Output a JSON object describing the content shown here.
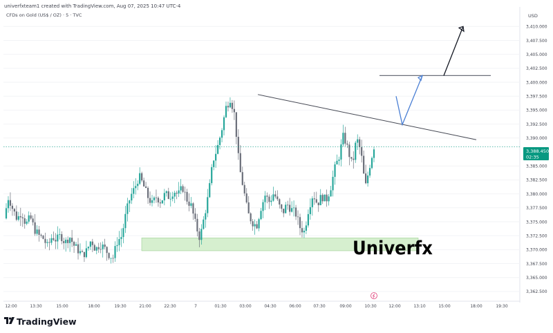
{
  "header": {
    "attribution": "univerfxteam1 created with TradingView.com, Aug 07, 2025 10:47 UTC-4",
    "symbol": "CFDs on Gold (US$ / OZ) · 5 · TVC",
    "currency": "USD"
  },
  "footer": {
    "brand": "TradingView"
  },
  "annotation": {
    "watermark": "Univerfx"
  },
  "colors": {
    "up": "#26a69a",
    "down": "#6b6f7a",
    "zone": "#d6efcf",
    "zone_border": "#9ccf93",
    "price_label": "#089981",
    "trendline": "#434651",
    "forecast": "#4a7fd4",
    "target": "#131722"
  },
  "chart_data": {
    "type": "candlestick",
    "ylim": [
      3361.5,
      3413.5
    ],
    "x_ticks": [
      "12:00",
      "13:30",
      "15:00",
      "18:00",
      "19:30",
      "21:00",
      "22:30",
      "7",
      "01:30",
      "03:00",
      "04:30",
      "06:00",
      "07:30",
      "09:00",
      "10:30",
      "12:00",
      "13:10",
      "15:00",
      "18:00",
      "19:30"
    ],
    "y_ticks": [
      "3,410.000",
      "3,407.500",
      "3,405.000",
      "3,402.500",
      "3,400.000",
      "3,397.500",
      "3,395.000",
      "3,392.500",
      "3,390.000",
      "3,385.000",
      "3,382.500",
      "3,380.000",
      "3,377.500",
      "3,375.000",
      "3,372.500",
      "3,370.000",
      "3,367.500",
      "3,365.000",
      "3,362.500"
    ],
    "current_price": {
      "label": "3,388.450",
      "countdown": "02:35",
      "value": 3388.45
    },
    "support_zone": [
      3369.8,
      3372.1
    ],
    "resistance_level": 3401.2,
    "trendline": [
      [
        0,
        3397.8
      ],
      [
        1,
        3389.7
      ]
    ],
    "forecast_path": [
      3397.5,
      3392.4,
      3401.2
    ],
    "target_path": [
      3401.2,
      3410.0
    ],
    "price_path": [
      3375.6,
      3379.5,
      3377.2,
      3375.5,
      3376.8,
      3374.5,
      3375.8,
      3373.6,
      3372.5,
      3372.0,
      3370.5,
      3372.4,
      3371.7,
      3372.6,
      3371.2,
      3372.4,
      3370.8,
      3369.9,
      3369.0,
      3369.8,
      3371.8,
      3370.0,
      3371.0,
      3370.3,
      3369.2,
      3368.5,
      3371.5,
      3372.4,
      3376.5,
      3379.5,
      3381.0,
      3383.2,
      3381.5,
      3379.5,
      3378.2,
      3379.5,
      3378.6,
      3380.0,
      3379.4,
      3380.6,
      3379.8,
      3381.2,
      3379.0,
      3377.8,
      3374.5,
      3372.0,
      3376.0,
      3380.0,
      3386.0,
      3388.2,
      3391.5,
      3395.5,
      3397.2,
      3394.0,
      3385.0,
      3381.0,
      3376.5,
      3375.0,
      3374.2,
      3377.5,
      3379.8,
      3378.5,
      3380.2,
      3378.2,
      3376.5,
      3378.2,
      3377.2,
      3376.5,
      3374.0,
      3373.2,
      3377.5,
      3380.0,
      3378.2,
      3379.6,
      3378.8,
      3381.0,
      3384.5,
      3386.8,
      3390.5,
      3388.0,
      3385.0,
      3390.0,
      3387.5,
      3381.0,
      3385.0,
      3388.5
    ]
  }
}
